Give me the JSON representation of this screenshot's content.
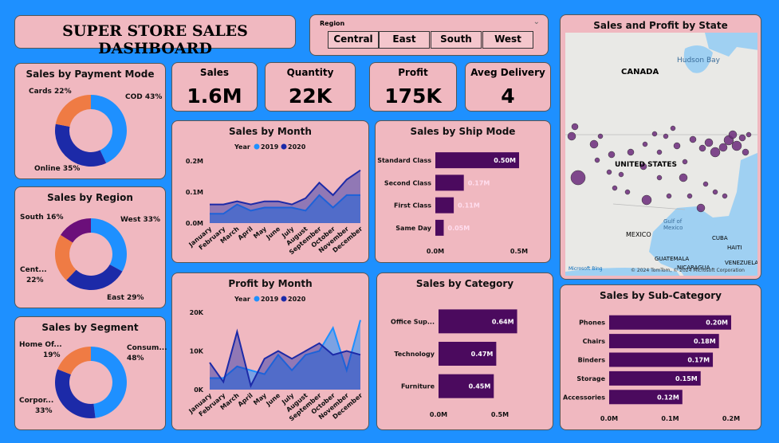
{
  "title": "SUPER STORE SALES DASHBOARD",
  "slicer": {
    "label": "Region",
    "options": [
      "Central",
      "East",
      "South",
      "West"
    ]
  },
  "kpis": [
    {
      "label": "Sales",
      "value": "1.6M"
    },
    {
      "label": "Quantity",
      "value": "22K"
    },
    {
      "label": "Profit",
      "value": "175K"
    },
    {
      "label": "Aveg Delivery",
      "value": "4"
    }
  ],
  "colors": {
    "background": "#1e90ff",
    "card": "#f0b8c0",
    "bar": "#4b0a5e",
    "dark_blue": "#1c2aa8",
    "light_blue": "#1e90ff",
    "orange": "#ef7b44",
    "purple": "#6b0f7a"
  },
  "payment": {
    "title": "Sales by Payment Mode",
    "labels": {
      "cod": "COD 43%",
      "cards": "Cards 22%",
      "online": "Online 35%"
    }
  },
  "region": {
    "title": "Sales by Region",
    "labels": {
      "west": "West 33%",
      "south": "South 16%",
      "central_a": "Cent...",
      "central_b": "22%",
      "east": "East 29%"
    }
  },
  "segment": {
    "title": "Sales by Segment",
    "labels": {
      "cons_a": "Consum...",
      "cons_b": "48%",
      "home_a": "Home Of...",
      "home_b": "19%",
      "corp_a": "Corpor...",
      "corp_b": "33%"
    }
  },
  "chart_data": [
    {
      "type": "pie",
      "title": "Sales by Payment Mode",
      "categories": [
        "COD",
        "Online",
        "Cards"
      ],
      "values": [
        43,
        35,
        22
      ]
    },
    {
      "type": "pie",
      "title": "Sales by Region",
      "categories": [
        "West",
        "East",
        "Central",
        "South"
      ],
      "values": [
        33,
        29,
        22,
        16
      ]
    },
    {
      "type": "pie",
      "title": "Sales by Segment",
      "categories": [
        "Consumer",
        "Corporate",
        "Home Office"
      ],
      "values": [
        48,
        33,
        19
      ]
    },
    {
      "type": "area",
      "title": "Sales by Month",
      "legend_title": "Year",
      "categories": [
        "January",
        "February",
        "March",
        "April",
        "May",
        "June",
        "July",
        "August",
        "September",
        "October",
        "November",
        "December"
      ],
      "series": [
        {
          "name": "2019",
          "values": [
            0.03,
            0.03,
            0.06,
            0.04,
            0.05,
            0.05,
            0.05,
            0.04,
            0.09,
            0.05,
            0.09,
            0.09
          ]
        },
        {
          "name": "2020",
          "values": [
            0.06,
            0.06,
            0.07,
            0.06,
            0.07,
            0.07,
            0.06,
            0.08,
            0.13,
            0.09,
            0.14,
            0.17
          ]
        }
      ],
      "yticks": [
        "0.0M",
        "0.1M",
        "0.2M"
      ],
      "ylim": [
        0,
        0.2
      ]
    },
    {
      "type": "area",
      "title": "Profit by Month",
      "legend_title": "Year",
      "categories": [
        "January",
        "February",
        "March",
        "April",
        "May",
        "June",
        "July",
        "August",
        "September",
        "October",
        "November",
        "December"
      ],
      "series": [
        {
          "name": "2019",
          "values": [
            3000,
            3000,
            6000,
            5000,
            4000,
            9000,
            5000,
            9000,
            10000,
            16000,
            5000,
            18000
          ]
        },
        {
          "name": "2020",
          "values": [
            7000,
            2000,
            15000,
            1000,
            8000,
            10000,
            8000,
            10000,
            12000,
            9000,
            10000,
            9000
          ]
        }
      ],
      "yticks": [
        "0K",
        "10K",
        "20K"
      ],
      "ylim": [
        0,
        20000
      ]
    },
    {
      "type": "bar",
      "title": "Sales by Ship Mode",
      "categories": [
        "Standard Class",
        "Second Class",
        "First Class",
        "Same Day"
      ],
      "values": [
        0.5,
        0.17,
        0.11,
        0.05
      ],
      "labels": [
        "0.50M",
        "0.17M",
        "0.11M",
        "0.05M"
      ],
      "xticks": [
        "0.0M",
        "0.5M"
      ]
    },
    {
      "type": "bar",
      "title": "Sales by Category",
      "categories": [
        "Office Sup...",
        "Technology",
        "Furniture"
      ],
      "values": [
        0.64,
        0.47,
        0.45
      ],
      "labels": [
        "0.64M",
        "0.47M",
        "0.45M"
      ],
      "xticks": [
        "0.0M",
        "0.5M"
      ]
    },
    {
      "type": "bar",
      "title": "Sales by Sub-Category",
      "categories": [
        "Phones",
        "Chairs",
        "Binders",
        "Storage",
        "Accessories"
      ],
      "values": [
        0.2,
        0.18,
        0.17,
        0.15,
        0.12
      ],
      "labels": [
        "0.20M",
        "0.18M",
        "0.17M",
        "0.15M",
        "0.12M"
      ],
      "xticks": [
        "0.0M",
        "0.1M",
        "0.2M"
      ]
    }
  ],
  "map": {
    "title": "Sales and Profit by State",
    "labels": [
      "CANADA",
      "Hudson Bay",
      "UNITED STATES",
      "MEXICO",
      "Gulf of Mexico",
      "CUBA",
      "HAITI",
      "GUATEMALA",
      "NICARAGUA",
      "VENEZUELA"
    ],
    "attribution": "© 2024 TomTom, © 2024 Microsoft Corporation",
    "brand": "Microsoft Bing"
  }
}
